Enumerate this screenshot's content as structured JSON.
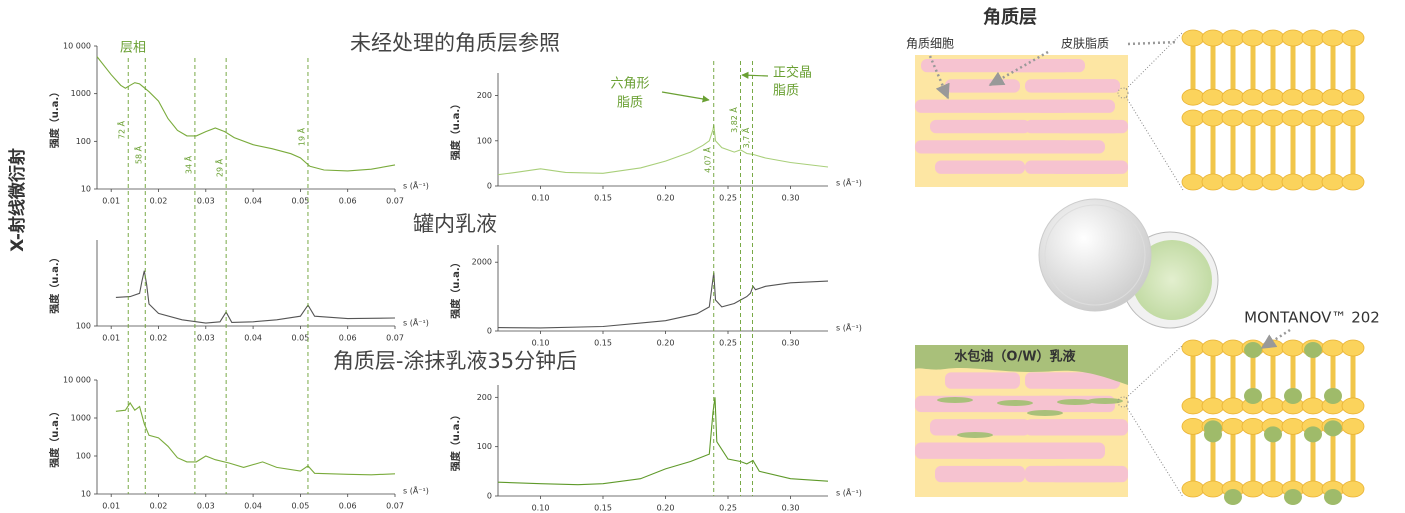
{
  "side_label": "X-射线微衍射",
  "sections": [
    "未经处理的角质层参照",
    "罐内乳液",
    "角质层-涂抹乳液35分钟后"
  ],
  "phase_labels": {
    "lamellar": "层相",
    "hexagonal": [
      "六角形",
      "脂质"
    ],
    "orthorhombic": [
      "正交晶",
      "脂质"
    ]
  },
  "chart_data": [
    {
      "type": "line",
      "color": "#7aab3c",
      "log_y": true,
      "ylabel": "强度（u.a.）",
      "xlabel": "s (Å⁻¹)",
      "x": [
        0.007,
        0.01,
        0.012,
        0.013,
        0.014,
        0.015,
        0.016,
        0.018,
        0.02,
        0.022,
        0.024,
        0.026,
        0.028,
        0.03,
        0.032,
        0.034,
        0.036,
        0.04,
        0.044,
        0.048,
        0.05,
        0.052,
        0.055,
        0.06,
        0.065,
        0.07
      ],
      "values": [
        6000,
        2500,
        1500,
        1300,
        1500,
        1700,
        1600,
        1100,
        700,
        300,
        170,
        130,
        130,
        160,
        190,
        160,
        120,
        85,
        70,
        55,
        45,
        30,
        25,
        24,
        26,
        32
      ],
      "xlim": [
        0.007,
        0.07
      ],
      "xticks": [
        0.01,
        0.02,
        0.03,
        0.04,
        0.05,
        0.06,
        0.07
      ],
      "ylim": [
        10,
        10000
      ],
      "yticks": [
        10,
        100,
        1000,
        {
          "value": 10000,
          "label": "10 000"
        }
      ],
      "markers": [
        {
          "s": 0.0136,
          "label": "72 Å"
        },
        {
          "s": 0.0172,
          "label": "58 Å"
        },
        {
          "s": 0.0277,
          "label": "34 Å"
        },
        {
          "s": 0.0343,
          "label": "29 Å"
        },
        {
          "s": 0.0516,
          "label": "19 Å"
        }
      ]
    },
    {
      "type": "line",
      "color": "#a9cf7a",
      "log_y": false,
      "ylabel": "强度（u.a.）",
      "xlabel": "s (Å⁻¹)",
      "x": [
        0.066,
        0.08,
        0.1,
        0.12,
        0.15,
        0.18,
        0.2,
        0.22,
        0.23,
        0.235,
        0.238,
        0.2386,
        0.24,
        0.245,
        0.255,
        0.26,
        0.265,
        0.27,
        0.28,
        0.3,
        0.33
      ],
      "values": [
        25,
        30,
        38,
        30,
        28,
        40,
        55,
        75,
        90,
        100,
        125,
        135,
        100,
        85,
        75,
        80,
        72,
        70,
        62,
        52,
        42
      ],
      "xlim": [
        0.066,
        0.33
      ],
      "xticks": [
        {
          "value": 0.1,
          "label": "0.10"
        },
        {
          "value": 0.15,
          "label": "0.15"
        },
        {
          "value": 0.2,
          "label": "0.20"
        },
        {
          "value": 0.25,
          "label": "0.25"
        },
        {
          "value": 0.3,
          "label": "0.30"
        }
      ],
      "ylim": [
        0,
        250
      ],
      "yticks": [
        0,
        100,
        200
      ],
      "markers": [
        {
          "s": 0.2386,
          "label": "4,07 Å"
        },
        {
          "s": 0.26,
          "label": "3,82 Å"
        },
        {
          "s": 0.2696,
          "label": "3,7 Å"
        }
      ]
    },
    {
      "type": "line",
      "color": "#555555",
      "log_y": true,
      "ylabel": "强度（u.a.）",
      "xlabel": "s (Å⁻¹)",
      "x": [
        0.011,
        0.014,
        0.016,
        0.0165,
        0.017,
        0.0175,
        0.018,
        0.02,
        0.025,
        0.03,
        0.033,
        0.0343,
        0.0355,
        0.04,
        0.045,
        0.05,
        0.0516,
        0.053,
        0.06,
        0.07
      ],
      "values": [
        215,
        220,
        240,
        330,
        440,
        300,
        180,
        140,
        118,
        108,
        112,
        145,
        110,
        112,
        118,
        130,
        175,
        130,
        122,
        124
      ],
      "xlim": [
        0.007,
        0.07
      ],
      "xticks": [
        0.01,
        0.02,
        0.03,
        0.04,
        0.05,
        0.06,
        0.07
      ],
      "ylim": [
        100,
        1000
      ],
      "yticks": [
        100
      ]
    },
    {
      "type": "line",
      "color": "#555555",
      "log_y": false,
      "ylabel": "强度（u.a.）",
      "xlabel": "s (Å⁻¹)",
      "x": [
        0.066,
        0.1,
        0.15,
        0.2,
        0.225,
        0.235,
        0.2386,
        0.24,
        0.245,
        0.255,
        0.26,
        0.265,
        0.268,
        0.27,
        0.272,
        0.28,
        0.3,
        0.33
      ],
      "values": [
        100,
        90,
        130,
        300,
        500,
        700,
        1700,
        900,
        700,
        800,
        900,
        1000,
        1100,
        1300,
        1200,
        1300,
        1400,
        1450
      ],
      "xlim": [
        0.066,
        0.33
      ],
      "xticks": [
        {
          "value": 0.1,
          "label": "0.10"
        },
        {
          "value": 0.15,
          "label": "0.15"
        },
        {
          "value": 0.2,
          "label": "0.20"
        },
        {
          "value": 0.25,
          "label": "0.25"
        },
        {
          "value": 0.3,
          "label": "0.30"
        }
      ],
      "ylim": [
        0,
        2500
      ],
      "yticks": [
        0,
        2000
      ]
    },
    {
      "type": "line",
      "color": "#7aab3c",
      "log_y": true,
      "ylabel": "强度（u.a.）",
      "xlabel": "s (Å⁻¹)",
      "x": [
        0.011,
        0.013,
        0.014,
        0.015,
        0.016,
        0.017,
        0.018,
        0.02,
        0.022,
        0.024,
        0.026,
        0.028,
        0.03,
        0.032,
        0.035,
        0.038,
        0.042,
        0.045,
        0.05,
        0.0516,
        0.053,
        0.06,
        0.065,
        0.07
      ],
      "values": [
        1500,
        1600,
        2500,
        1600,
        2000,
        700,
        350,
        300,
        180,
        90,
        70,
        70,
        100,
        80,
        65,
        50,
        70,
        50,
        40,
        55,
        35,
        33,
        32,
        34
      ],
      "xlim": [
        0.007,
        0.07
      ],
      "xticks": [
        0.01,
        0.02,
        0.03,
        0.04,
        0.05,
        0.06,
        0.07
      ],
      "ylim": [
        10,
        10000
      ],
      "yticks": [
        10,
        100,
        1000,
        {
          "value": 10000,
          "label": "10 000"
        }
      ]
    },
    {
      "type": "line",
      "color": "#5f9a2a",
      "log_y": false,
      "ylabel": "强度（u.a.）",
      "xlabel": "s (Å⁻¹)",
      "x": [
        0.066,
        0.1,
        0.13,
        0.15,
        0.18,
        0.2,
        0.22,
        0.235,
        0.238,
        0.2396,
        0.241,
        0.25,
        0.26,
        0.265,
        0.27,
        0.275,
        0.3,
        0.33
      ],
      "values": [
        28,
        25,
        23,
        25,
        35,
        55,
        70,
        85,
        170,
        200,
        110,
        75,
        70,
        65,
        72,
        50,
        35,
        30
      ],
      "xlim": [
        0.066,
        0.33
      ],
      "xticks": [
        {
          "value": 0.1,
          "label": "0.10"
        },
        {
          "value": 0.15,
          "label": "0.15"
        },
        {
          "value": 0.2,
          "label": "0.20"
        },
        {
          "value": 0.25,
          "label": "0.25"
        },
        {
          "value": 0.3,
          "label": "0.30"
        }
      ],
      "ylim": [
        0,
        225
      ],
      "yticks": [
        0,
        100,
        200
      ]
    }
  ],
  "diagram": {
    "title": "角质层",
    "corneocyte": "角质细胞",
    "lipids": "皮肤脂质",
    "emulsion": "水包油（O/W）乳液",
    "ingredient": "MONTANOV™ 202"
  }
}
